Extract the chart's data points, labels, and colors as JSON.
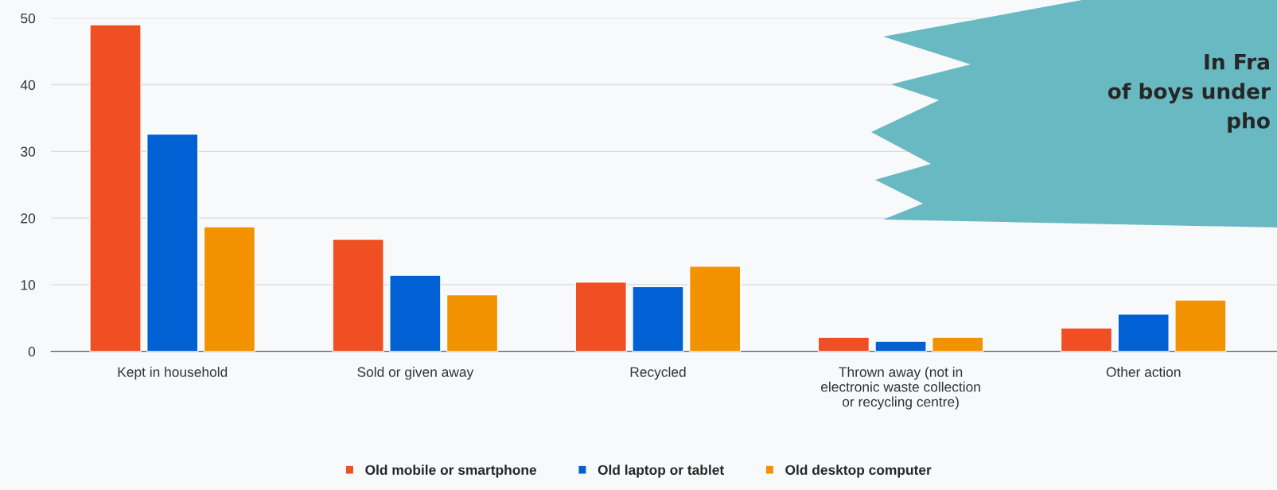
{
  "chart_data": {
    "type": "bar",
    "categories": [
      "Kept in household",
      "Sold or given away",
      "Recycled",
      "Thrown away (not in\nelectronic waste collection\nor recycling centre)",
      "Other action"
    ],
    "series": [
      {
        "name": "Old mobile or smartphone",
        "color": "#f04e23",
        "values": [
          49.0,
          16.8,
          10.4,
          2.1,
          3.5
        ]
      },
      {
        "name": "Old laptop or tablet",
        "color": "#0060d4",
        "values": [
          32.6,
          11.4,
          9.7,
          1.5,
          5.6
        ]
      },
      {
        "name": "Old desktop computer",
        "color": "#f39200",
        "values": [
          18.7,
          8.5,
          12.8,
          2.1,
          7.7
        ]
      }
    ],
    "ylim": [
      0,
      50
    ],
    "yticks": [
      0,
      10,
      20,
      30,
      40,
      50
    ],
    "grid": "y",
    "legend": "bottom",
    "annotations": [
      "In Fra",
      "of boys under",
      "pho"
    ]
  }
}
